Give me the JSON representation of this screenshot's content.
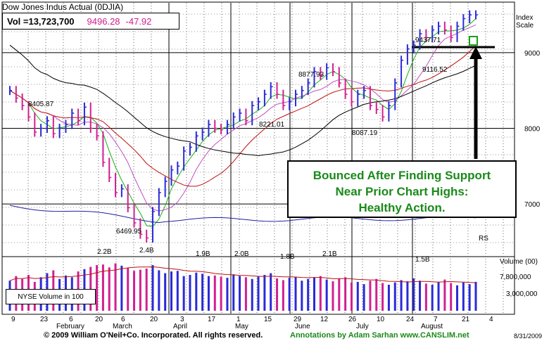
{
  "header": {
    "title": "Dow Jones Indus Actual    (0DJIA)",
    "vol_label": "Vol =13,723,700",
    "price": "9496.28",
    "change": "-47.92"
  },
  "index_label": "Index\nScale",
  "annotation": "Bounced After Finding Support Near Prior Chart Highs: Healthy Action.",
  "nyse_label": "NYSE  Volume in 100",
  "footer": {
    "copyright": "© 2009 William O'Neil+Co. Incorporated. All rights reserved.",
    "annotations": "Annotations by Adam Sarhan www.CANSLIM.net",
    "date": "8/31/2009"
  },
  "chart_data": {
    "type": "bar",
    "title": "Dow Jones Indus Actual (0DJIA)",
    "price_axis": {
      "ticks": [
        7000,
        8000,
        9000
      ],
      "ylim": [
        6350,
        9650
      ],
      "scale": "Index Scale"
    },
    "volume_axis": {
      "ticks": [
        "7,800,000",
        "3,000,000"
      ],
      "label": "Volume (00)"
    },
    "x_ticks": [
      "9",
      "23",
      "6",
      "20",
      "6",
      "20",
      "3",
      "17",
      "1",
      "15",
      "29",
      "12",
      "26",
      "10",
      "24",
      "7",
      "21",
      "4"
    ],
    "month_labels": [
      "February",
      "March",
      "April",
      "May",
      "June",
      "July",
      "August"
    ],
    "price_annotations": [
      "8405.87",
      "6469.95",
      "8877.93",
      "8221.01",
      "8087.19",
      "9437.71",
      "9116.52"
    ],
    "volume_annotations": [
      "2.2B",
      "2.4B",
      "1.9B",
      "2.0B",
      "1.8B",
      "2.1B",
      "1.5B"
    ],
    "rs_label": "RS",
    "closes": [
      8500,
      8400,
      8300,
      8150,
      7950,
      8000,
      8100,
      7930,
      8000,
      8050,
      8200,
      8100,
      8280,
      8000,
      7900,
      7550,
      7350,
      7150,
      7200,
      6950,
      6750,
      6600,
      6550,
      6900,
      7150,
      7300,
      7450,
      7500,
      7700,
      7750,
      7900,
      7950,
      8050,
      8000,
      7980,
      8050,
      8150,
      8200,
      8100,
      8300,
      8350,
      8450,
      8550,
      8450,
      8300,
      8350,
      8450,
      8500,
      8600,
      8750,
      8700,
      8800,
      8750,
      8600,
      8450,
      8350,
      8450,
      8500,
      8300,
      8250,
      8150,
      8300,
      8600,
      8900,
      9050,
      9100,
      9250,
      9200,
      9300,
      9350,
      9300,
      9200,
      9350,
      9450,
      9500,
      9500
    ],
    "volumes": [
      5.2,
      6.0,
      5.5,
      6.2,
      5.0,
      5.8,
      6.5,
      7.0,
      5.5,
      6.1,
      5.8,
      6.8,
      7.2,
      7.6,
      7.9,
      8.0,
      7.5,
      8.2,
      7.8,
      7.4,
      6.9,
      7.1,
      7.3,
      7.9,
      7.0,
      6.5,
      6.8,
      6.9,
      6.0,
      6.2,
      6.6,
      6.4,
      6.0,
      6.1,
      5.9,
      5.7,
      6.3,
      6.0,
      5.8,
      5.5,
      5.9,
      6.2,
      6.5,
      5.6,
      5.3,
      5.7,
      5.9,
      5.2,
      5.5,
      5.8,
      6.0,
      5.4,
      5.1,
      5.6,
      5.8,
      4.9,
      5.0,
      4.6,
      5.2,
      5.5,
      4.8,
      4.5,
      4.9,
      5.3,
      5.1,
      5.6,
      5.2,
      4.7,
      4.5,
      5.0,
      5.4,
      4.8,
      4.4,
      4.9,
      4.6,
      5.0
    ]
  }
}
